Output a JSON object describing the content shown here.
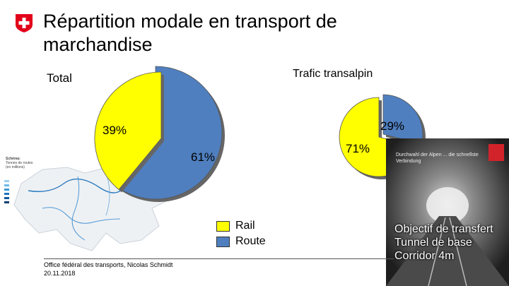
{
  "header": {
    "title": "Répartition modale en transport de marchandise",
    "logo": "swiss-cross"
  },
  "colors": {
    "rail": "#ffff00",
    "road": "#4f7fbf",
    "logo_red": "#e2001a"
  },
  "chart_data": [
    {
      "type": "pie",
      "title": "Total",
      "categories": [
        "Rail",
        "Route"
      ],
      "values": [
        39,
        61
      ],
      "labels": [
        "39%",
        "61%"
      ]
    },
    {
      "type": "pie",
      "title": "Trafic transalpin",
      "categories": [
        "Rail",
        "Route"
      ],
      "values": [
        71,
        29
      ],
      "labels": [
        "71%",
        "29%"
      ]
    }
  ],
  "legend": [
    {
      "label": "Rail",
      "color": "#ffff00"
    },
    {
      "label": "Route",
      "color": "#4f7fbf"
    }
  ],
  "map": {
    "legend_title": "Schéma:",
    "legend_subtitle": "Tonnes de routes (en millions)"
  },
  "photo": {
    "headline": "Durchwahl der Alpen ... die schnellste Verbindung",
    "caption_line1": "Objectif de transfert",
    "caption_line2": "Tunnel de base",
    "caption_line3": "Corridor 4m"
  },
  "footer": {
    "line1": "Office fédéral des transports, Nicolas Schmidt",
    "line2": "20.11.2018"
  }
}
